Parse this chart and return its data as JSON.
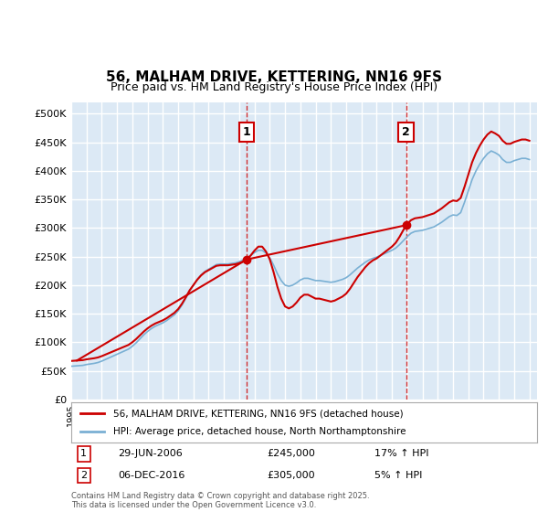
{
  "title": "56, MALHAM DRIVE, KETTERING, NN16 9FS",
  "subtitle": "Price paid vs. HM Land Registry's House Price Index (HPI)",
  "ylabel_ticks": [
    "£0",
    "£50K",
    "£100K",
    "£150K",
    "£200K",
    "£250K",
    "£300K",
    "£350K",
    "£400K",
    "£450K",
    "£500K"
  ],
  "ytick_values": [
    0,
    50000,
    100000,
    150000,
    200000,
    250000,
    300000,
    350000,
    400000,
    450000,
    500000
  ],
  "ylim": [
    0,
    520000
  ],
  "xlim_start": 1995.0,
  "xlim_end": 2025.5,
  "background_color": "#dce9f5",
  "plot_bg_color": "#dce9f5",
  "grid_color": "#ffffff",
  "line1_color": "#cc0000",
  "line2_color": "#7ab0d4",
  "marker1_date": 2006.495,
  "marker1_value": 245000,
  "marker1_label": "1",
  "marker2_date": 2016.923,
  "marker2_value": 305000,
  "marker2_label": "2",
  "legend_line1": "56, MALHAM DRIVE, KETTERING, NN16 9FS (detached house)",
  "legend_line2": "HPI: Average price, detached house, North Northamptonshire",
  "annotation1": "1    29-JUN-2006    £245,000    17% ↑ HPI",
  "annotation2": "2    06-DEC-2016    £305,000    5% ↑ HPI",
  "footer": "Contains HM Land Registry data © Crown copyright and database right 2025.\nThis data is licensed under the Open Government Licence v3.0.",
  "hpi_data_x": [
    1995.0,
    1995.25,
    1995.5,
    1995.75,
    1996.0,
    1996.25,
    1996.5,
    1996.75,
    1997.0,
    1997.25,
    1997.5,
    1997.75,
    1998.0,
    1998.25,
    1998.5,
    1998.75,
    1999.0,
    1999.25,
    1999.5,
    1999.75,
    2000.0,
    2000.25,
    2000.5,
    2000.75,
    2001.0,
    2001.25,
    2001.5,
    2001.75,
    2002.0,
    2002.25,
    2002.5,
    2002.75,
    2003.0,
    2003.25,
    2003.5,
    2003.75,
    2004.0,
    2004.25,
    2004.5,
    2004.75,
    2005.0,
    2005.25,
    2005.5,
    2005.75,
    2006.0,
    2006.25,
    2006.5,
    2006.75,
    2007.0,
    2007.25,
    2007.5,
    2007.75,
    2008.0,
    2008.25,
    2008.5,
    2008.75,
    2009.0,
    2009.25,
    2009.5,
    2009.75,
    2010.0,
    2010.25,
    2010.5,
    2010.75,
    2011.0,
    2011.25,
    2011.5,
    2011.75,
    2012.0,
    2012.25,
    2012.5,
    2012.75,
    2013.0,
    2013.25,
    2013.5,
    2013.75,
    2014.0,
    2014.25,
    2014.5,
    2014.75,
    2015.0,
    2015.25,
    2015.5,
    2015.75,
    2016.0,
    2016.25,
    2016.5,
    2016.75,
    2017.0,
    2017.25,
    2017.5,
    2017.75,
    2018.0,
    2018.25,
    2018.5,
    2018.75,
    2019.0,
    2019.25,
    2019.5,
    2019.75,
    2020.0,
    2020.25,
    2020.5,
    2020.75,
    2021.0,
    2021.25,
    2021.5,
    2021.75,
    2022.0,
    2022.25,
    2022.5,
    2022.75,
    2023.0,
    2023.25,
    2023.5,
    2023.75,
    2024.0,
    2024.25,
    2024.5,
    2024.75,
    2025.0
  ],
  "hpi_data_y": [
    58000,
    58500,
    59000,
    59500,
    61000,
    62000,
    63000,
    64500,
    67000,
    70000,
    73000,
    76000,
    79000,
    82000,
    85000,
    88000,
    93000,
    99000,
    106000,
    113000,
    119000,
    124000,
    128000,
    131000,
    134000,
    138000,
    143000,
    148000,
    155000,
    165000,
    177000,
    190000,
    200000,
    210000,
    218000,
    224000,
    228000,
    232000,
    236000,
    237000,
    237000,
    237000,
    238000,
    239000,
    241000,
    244000,
    248000,
    252000,
    257000,
    261000,
    261000,
    256000,
    248000,
    235000,
    220000,
    208000,
    200000,
    198000,
    200000,
    204000,
    209000,
    212000,
    212000,
    210000,
    208000,
    208000,
    207000,
    206000,
    205000,
    206000,
    208000,
    210000,
    213000,
    218000,
    224000,
    230000,
    235000,
    240000,
    244000,
    247000,
    249000,
    252000,
    255000,
    258000,
    261000,
    265000,
    271000,
    278000,
    285000,
    291000,
    294000,
    295000,
    296000,
    298000,
    300000,
    302000,
    306000,
    310000,
    315000,
    320000,
    323000,
    322000,
    327000,
    345000,
    365000,
    385000,
    400000,
    412000,
    422000,
    430000,
    435000,
    432000,
    428000,
    420000,
    415000,
    415000,
    418000,
    420000,
    422000,
    422000,
    420000
  ],
  "property_data_x": [
    1995.37,
    2006.495,
    2016.923
  ],
  "property_data_y": [
    68000,
    245000,
    305000
  ]
}
